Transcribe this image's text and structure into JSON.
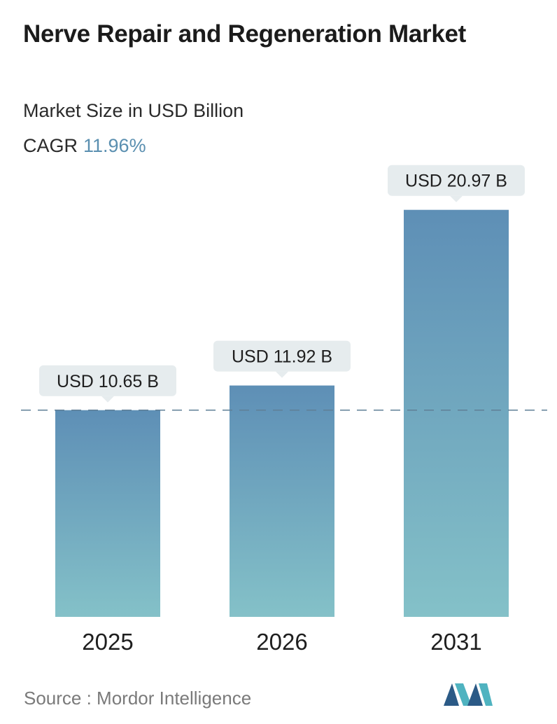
{
  "header": {
    "title": "Nerve Repair and Regeneration Market",
    "subtitle": "Market Size in USD Billion",
    "cagr_label": "CAGR",
    "cagr_value": "11.96%"
  },
  "chart_data": {
    "type": "bar",
    "categories": [
      "2025",
      "2026",
      "2031"
    ],
    "values": [
      10.65,
      11.92,
      20.97
    ],
    "value_labels": [
      "USD 10.65 B",
      "USD 11.92 B",
      "USD 20.97 B"
    ],
    "title": "Nerve Repair and Regeneration Market",
    "subtitle": "Market Size in USD Billion",
    "xlabel": "",
    "ylabel": "",
    "ylim": [
      0,
      21.5
    ],
    "grid": false,
    "reference_line": 10.65,
    "colors": {
      "bar_top": "#5e8fb6",
      "bar_bottom": "#84c1c8",
      "label_bg": "#e6ecee",
      "reference_line": "#5f7f96"
    }
  },
  "footer": {
    "source": "Source :  Mordor Intelligence",
    "logo_name": "mordor-intelligence-logo",
    "logo_colors": [
      "#2b5a86",
      "#4fb3c0"
    ]
  }
}
